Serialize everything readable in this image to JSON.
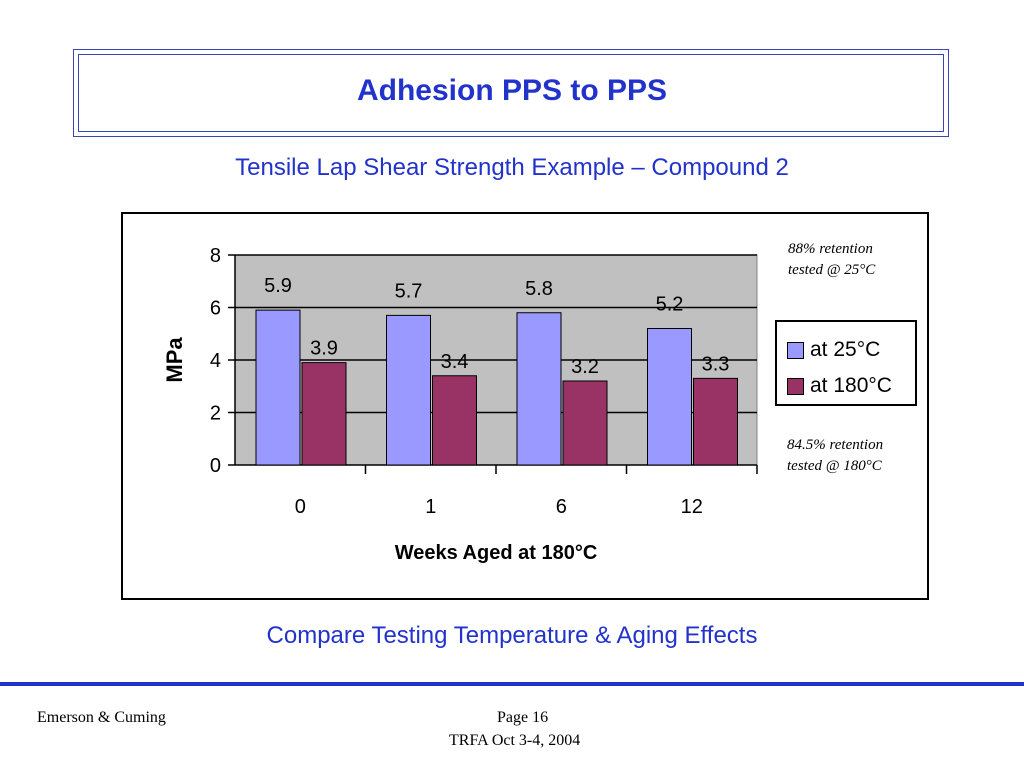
{
  "header": {
    "title": "Adhesion PPS to PPS",
    "subtitle": "Tensile Lap Shear Strength  Example – Compound 2"
  },
  "chart_data": {
    "type": "bar",
    "categories": [
      "0",
      "1",
      "6",
      "12"
    ],
    "series": [
      {
        "name": "at 25°C",
        "values": [
          5.9,
          5.7,
          5.8,
          5.2
        ],
        "color": "#9999ff"
      },
      {
        "name": "at 180°C",
        "values": [
          3.9,
          3.4,
          3.2,
          3.3
        ],
        "color": "#993366"
      }
    ],
    "value_labels": [
      [
        "5.9",
        "5.7",
        "5.8",
        "5.2"
      ],
      [
        "3.9",
        "3.4",
        "3.2",
        "3.3"
      ]
    ],
    "xlabel": "Weeks Aged at 180°C",
    "ylabel": "MPa",
    "ylim": [
      0,
      8
    ],
    "yticks": [
      "0",
      "2",
      "4",
      "6",
      "8"
    ],
    "grid": true,
    "plot_background": "#c0c0c0",
    "legend_position": "right"
  },
  "notes": {
    "top_line1": "88% retention",
    "top_line2": "tested @ 25°C",
    "bottom_line1": "84.5% retention",
    "bottom_line2": "tested @ 180°C"
  },
  "caption": "Compare Testing Temperature & Aging Effects",
  "footer": {
    "company": "Emerson & Cuming",
    "page": "Page 16",
    "event": "TRFA Oct 3-4, 2004"
  }
}
